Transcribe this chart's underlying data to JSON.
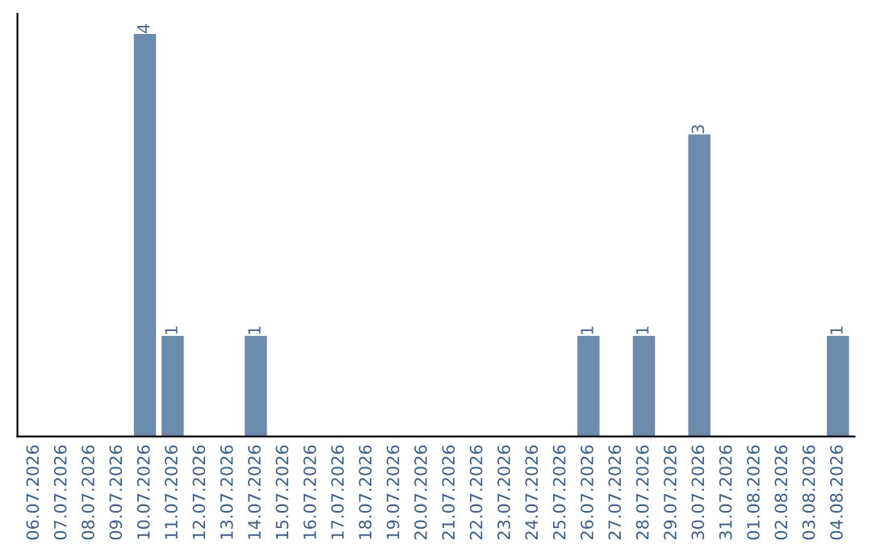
{
  "chart_data": {
    "type": "bar",
    "categories": [
      "06.07.2026",
      "07.07.2026",
      "08.07.2026",
      "09.07.2026",
      "10.07.2026",
      "11.07.2026",
      "12.07.2026",
      "13.07.2026",
      "14.07.2026",
      "15.07.2026",
      "16.07.2026",
      "17.07.2026",
      "18.07.2026",
      "19.07.2026",
      "20.07.2026",
      "21.07.2026",
      "22.07.2026",
      "23.07.2026",
      "24.07.2026",
      "25.07.2026",
      "26.07.2026",
      "27.07.2026",
      "28.07.2026",
      "29.07.2026",
      "30.07.2026",
      "31.07.2026",
      "01.08.2026",
      "02.08.2026",
      "03.08.2026",
      "04.08.2026"
    ],
    "values": [
      0,
      0,
      0,
      0,
      4,
      1,
      0,
      0,
      1,
      0,
      0,
      0,
      0,
      0,
      0,
      0,
      0,
      0,
      0,
      0,
      1,
      0,
      1,
      0,
      3,
      0,
      0,
      0,
      0,
      1
    ],
    "value_labels": [
      null,
      null,
      null,
      null,
      "4",
      "1",
      null,
      null,
      "1",
      null,
      null,
      null,
      null,
      null,
      null,
      null,
      null,
      null,
      null,
      null,
      "1",
      null,
      "1",
      null,
      "3",
      null,
      null,
      null,
      null,
      "1"
    ],
    "color": "#6b8cac",
    "ylim": [
      0,
      4.2
    ],
    "tick_labels": "x",
    "grid": false,
    "legend": false
  }
}
